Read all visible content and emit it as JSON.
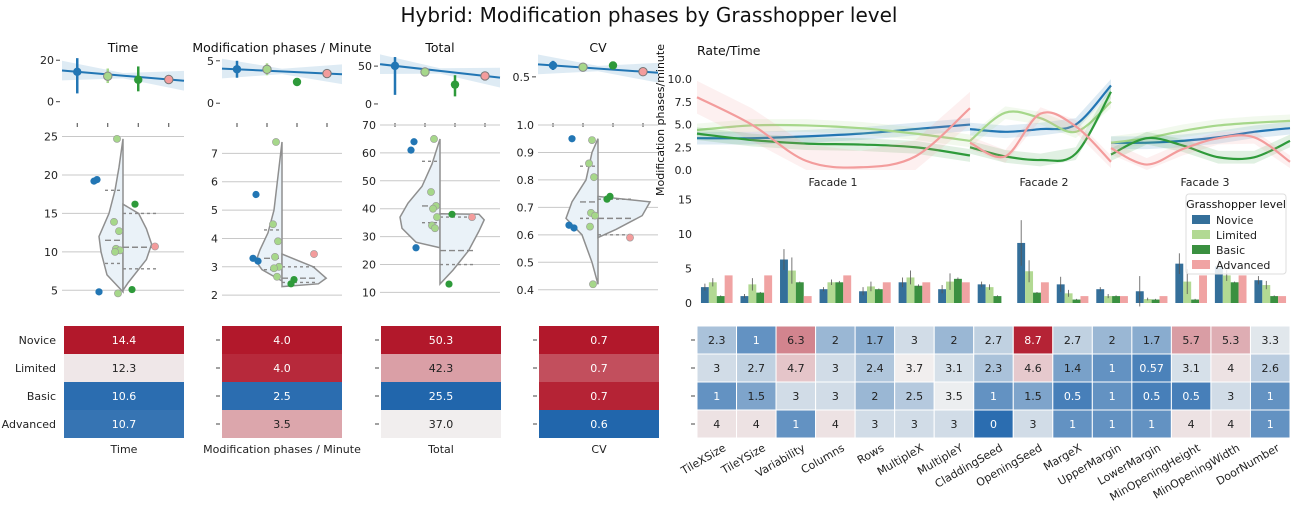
{
  "title": "Hybrid: Modification phases by Grasshopper level",
  "levels": [
    "Novice",
    "Limited",
    "Basic",
    "Advanced"
  ],
  "colors": {
    "Novice": "#2276b4",
    "Limited": "#a6d78a",
    "Basic": "#2e9a3a",
    "Advanced": "#f39c9c",
    "violin_fill": "#eaf2f8",
    "violin_edge": "#8f8f8f",
    "heat_high": "#b2182b",
    "heat_mid": "#f2f2f2",
    "heat_low": "#2166ac"
  },
  "chart_data": [
    {
      "type": "line",
      "id": "point-time",
      "title": "Time",
      "categories": [
        "Novice",
        "Limited",
        "Basic",
        "Advanced"
      ],
      "means": [
        14.4,
        12.3,
        10.6,
        10.7
      ],
      "ci": [
        [
          4,
          21
        ],
        [
          9,
          16
        ],
        [
          5,
          17
        ],
        [
          10,
          12
        ]
      ],
      "ylim": [
        -4,
        23
      ],
      "yticks": [
        "0",
        "20"
      ],
      "ytick_values": [
        0,
        20
      ]
    },
    {
      "type": "line",
      "id": "point-rate",
      "title": "Modification phases / Minute",
      "categories": [
        "Novice",
        "Limited",
        "Basic",
        "Advanced"
      ],
      "means": [
        4.0,
        4.0,
        2.5,
        3.5
      ],
      "ci": [
        [
          3.0,
          5.0
        ],
        [
          3.3,
          4.7
        ],
        [
          2.3,
          2.7
        ],
        [
          3.3,
          3.7
        ]
      ],
      "ylim": [
        -0.8,
        5.8
      ],
      "yticks": [
        "0",
        "5"
      ],
      "ytick_values": [
        0,
        5
      ]
    },
    {
      "type": "line",
      "id": "point-total",
      "title": "Total",
      "categories": [
        "Novice",
        "Limited",
        "Basic",
        "Advanced"
      ],
      "means": [
        50.3,
        42.3,
        25.5,
        37.0
      ],
      "ci": [
        [
          12,
          62
        ],
        [
          38,
          48
        ],
        [
          10,
          38
        ],
        [
          35,
          39
        ]
      ],
      "ylim": [
        -8,
        66
      ],
      "yticks": [
        "0",
        "50"
      ],
      "ytick_values": [
        0,
        50
      ]
    },
    {
      "type": "line",
      "id": "point-cv",
      "title": "CV",
      "categories": [
        "Novice",
        "Limited",
        "Basic",
        "Advanced"
      ],
      "means": [
        0.7,
        0.67,
        0.7,
        0.59
      ],
      "ci": [
        [
          0.62,
          0.78
        ],
        [
          0.6,
          0.74
        ],
        [
          0.68,
          0.72
        ],
        [
          0.57,
          0.61
        ]
      ],
      "ylim": [
        -0.08,
        0.9
      ],
      "yticks": [
        "0.5"
      ],
      "ytick_values": [
        0.5
      ]
    },
    {
      "type": "scatter",
      "id": "violin-time",
      "ylim": [
        4,
        26.5
      ],
      "yticks": [
        "5",
        "10",
        "15",
        "20",
        "25"
      ],
      "ytick_values": [
        5,
        10,
        15,
        20,
        25
      ],
      "points": [
        {
          "level": "Novice",
          "y": 19.4
        },
        {
          "level": "Novice",
          "y": 19.2
        },
        {
          "level": "Novice",
          "y": 4.8
        },
        {
          "level": "Limited",
          "y": 24.7
        },
        {
          "level": "Limited",
          "y": 13.9
        },
        {
          "level": "Limited",
          "y": 12.7
        },
        {
          "level": "Limited",
          "y": 10.4
        },
        {
          "level": "Limited",
          "y": 10.2
        },
        {
          "level": "Limited",
          "y": 10.0
        },
        {
          "level": "Limited",
          "y": 4.6
        },
        {
          "level": "Basic",
          "y": 16.2
        },
        {
          "level": "Basic",
          "y": 5.1
        },
        {
          "level": "Advanced",
          "y": 10.7
        }
      ]
    },
    {
      "type": "scatter",
      "id": "violin-rate",
      "ylim": [
        1.9,
        8.0
      ],
      "yticks": [
        "2",
        "3",
        "4",
        "5",
        "6",
        "7"
      ],
      "ytick_values": [
        2,
        3,
        4,
        5,
        6,
        7
      ],
      "points": [
        {
          "level": "Novice",
          "y": 5.55
        },
        {
          "level": "Novice",
          "y": 3.3
        },
        {
          "level": "Novice",
          "y": 3.2
        },
        {
          "level": "Limited",
          "y": 7.4
        },
        {
          "level": "Limited",
          "y": 4.5
        },
        {
          "level": "Limited",
          "y": 3.9
        },
        {
          "level": "Limited",
          "y": 3.35
        },
        {
          "level": "Limited",
          "y": 3.0
        },
        {
          "level": "Limited",
          "y": 2.95
        },
        {
          "level": "Limited",
          "y": 2.65
        },
        {
          "level": "Basic",
          "y": 2.55
        },
        {
          "level": "Basic",
          "y": 2.4
        },
        {
          "level": "Advanced",
          "y": 3.45
        }
      ]
    },
    {
      "type": "scatter",
      "id": "violin-total",
      "ylim": [
        8,
        70
      ],
      "yticks": [
        "10",
        "20",
        "30",
        "40",
        "50",
        "60",
        "70"
      ],
      "ytick_values": [
        10,
        20,
        30,
        40,
        50,
        60,
        70
      ],
      "points": [
        {
          "level": "Novice",
          "y": 64
        },
        {
          "level": "Novice",
          "y": 61
        },
        {
          "level": "Novice",
          "y": 26
        },
        {
          "level": "Limited",
          "y": 65
        },
        {
          "level": "Limited",
          "y": 46
        },
        {
          "level": "Limited",
          "y": 41
        },
        {
          "level": "Limited",
          "y": 40
        },
        {
          "level": "Limited",
          "y": 37
        },
        {
          "level": "Limited",
          "y": 34
        },
        {
          "level": "Limited",
          "y": 33
        },
        {
          "level": "Basic",
          "y": 38
        },
        {
          "level": "Basic",
          "y": 13
        },
        {
          "level": "Advanced",
          "y": 37
        }
      ]
    },
    {
      "type": "scatter",
      "id": "violin-cv",
      "ylim": [
        0.37,
        1.0
      ],
      "yticks": [
        "0.4",
        "0.5",
        "0.6",
        "0.7",
        "0.8",
        "0.9",
        "1.0"
      ],
      "ytick_values": [
        0.4,
        0.5,
        0.6,
        0.7,
        0.8,
        0.9,
        1.0
      ],
      "points": [
        {
          "level": "Novice",
          "y": 0.95
        },
        {
          "level": "Novice",
          "y": 0.635
        },
        {
          "level": "Novice",
          "y": 0.625
        },
        {
          "level": "Limited",
          "y": 0.945
        },
        {
          "level": "Limited",
          "y": 0.86
        },
        {
          "level": "Limited",
          "y": 0.81
        },
        {
          "level": "Limited",
          "y": 0.68
        },
        {
          "level": "Limited",
          "y": 0.67
        },
        {
          "level": "Limited",
          "y": 0.63
        },
        {
          "level": "Limited",
          "y": 0.42
        },
        {
          "level": "Basic",
          "y": 0.74
        },
        {
          "level": "Basic",
          "y": 0.73
        },
        {
          "level": "Advanced",
          "y": 0.59
        }
      ]
    },
    {
      "type": "heatmap",
      "id": "heat-summary",
      "rows": [
        "Novice",
        "Limited",
        "Basic",
        "Advanced"
      ],
      "columns": [
        {
          "label": "Time",
          "values": [
            "14.4",
            "12.3",
            "10.6",
            "10.7"
          ],
          "norm": [
            1.0,
            0.05,
            -0.95,
            -0.9
          ]
        },
        {
          "label": "Modification phases / Minute",
          "values": [
            "4.0",
            "4.0",
            "2.5",
            "3.5"
          ],
          "norm": [
            1.0,
            0.92,
            -0.95,
            0.35
          ]
        },
        {
          "label": "Total",
          "values": [
            "50.3",
            "42.3",
            "25.5",
            "37.0"
          ],
          "norm": [
            1.0,
            0.38,
            -1.0,
            0.02
          ]
        },
        {
          "label": "CV",
          "values": [
            "0.7",
            "0.7",
            "0.7",
            "0.6"
          ],
          "norm": [
            1.0,
            0.75,
            0.95,
            -1.0
          ]
        }
      ]
    },
    {
      "type": "line",
      "id": "rate-time",
      "title": "Rate/Time",
      "ylabel": "Modification phases/minute",
      "ylim": [
        0,
        11
      ],
      "yticks": [
        "0.0",
        "2.5",
        "5.0",
        "7.5",
        "10.0"
      ],
      "ytick_values": [
        0,
        2.5,
        5.0,
        7.5,
        10.0
      ],
      "segments": [
        "Facade 1",
        "Facade 2",
        "Facade 3"
      ],
      "series": [
        {
          "name": "Novice",
          "values": [
            [
              3.5,
              3.5,
              3.7,
              4.0,
              4.5,
              5.0
            ],
            [
              4.5,
              4.2,
              4.5,
              5.0,
              9.3
            ],
            [
              3.0,
              3.0,
              3.2,
              3.6,
              4.2,
              4.6
            ]
          ]
        },
        {
          "name": "Limited",
          "values": [
            [
              4.4,
              4.9,
              4.9,
              4.6,
              4.0,
              3.2
            ],
            [
              3.2,
              6.3,
              5.7,
              4.2,
              7.5
            ],
            [
              3.0,
              3.5,
              4.3,
              4.9,
              5.2,
              5.4
            ]
          ]
        },
        {
          "name": "Basic",
          "values": [
            [
              4.0,
              3.3,
              2.9,
              2.8,
              2.5,
              1.6
            ],
            [
              2.5,
              1.5,
              1.1,
              1.8,
              8.6
            ],
            [
              1.7,
              3.5,
              2.7,
              1.4,
              1.4,
              3.2
            ]
          ]
        },
        {
          "name": "Advanced",
          "values": [
            [
              8.0,
              5.0,
              1.0,
              0.3,
              1.5,
              6.8
            ],
            [
              3.0,
              1.5,
              6.2,
              4.8,
              0.9
            ],
            [
              2.4,
              0.6,
              2.3,
              3.5,
              3.6,
              0.9
            ]
          ]
        }
      ]
    },
    {
      "type": "bar",
      "id": "bar-params",
      "ylim": [
        0,
        15.5
      ],
      "yticks": [
        "0",
        "5",
        "10",
        "15"
      ],
      "ytick_values": [
        0,
        5,
        10,
        15
      ],
      "legend_title": "Grasshopper level",
      "legend": "top-right",
      "categories": [
        "TileXSize",
        "TileYSize",
        "Variability",
        "Columns",
        "Rows",
        "MultipleX",
        "MultipleY",
        "CladdingSeed",
        "OpeningSeed",
        "MargeX",
        "UpperMargin",
        "LowerMargin",
        "MinOpeningHeight",
        "MinOpeningWidth",
        "DoorNumber"
      ],
      "series": [
        {
          "name": "Novice",
          "values": [
            2.3,
            1,
            6.3,
            2,
            1.7,
            3,
            2,
            2.7,
            8.7,
            2.7,
            2,
            1.7,
            5.7,
            5.3,
            3.3
          ],
          "err": [
            0.5,
            0.3,
            1.5,
            0.3,
            0.6,
            0.7,
            0.6,
            0.4,
            3.3,
            1.1,
            0.3,
            2.2,
            1.5,
            1.0,
            0.6
          ]
        },
        {
          "name": "Limited",
          "values": [
            3,
            2.7,
            4.7,
            3,
            2.4,
            3.7,
            3.1,
            2.3,
            4.6,
            1.4,
            1,
            0.57,
            3.1,
            4,
            2.6
          ],
          "err": [
            0.6,
            0.9,
            1.9,
            0.4,
            0.7,
            1.0,
            1.2,
            0.4,
            1.6,
            0.5,
            0.3,
            0.2,
            1.8,
            0.8,
            0.6
          ]
        },
        {
          "name": "Basic",
          "values": [
            1,
            1.5,
            3,
            3,
            2,
            2.5,
            3.5,
            1,
            1.5,
            0.5,
            1,
            0.5,
            0.5,
            3,
            1
          ],
          "err": [
            0.1,
            0.1,
            0.1,
            0.2,
            0.1,
            0.2,
            0.2,
            0.1,
            0.1,
            0.1,
            0.1,
            0.1,
            0.1,
            0.1,
            0.1
          ]
        },
        {
          "name": "Advanced",
          "values": [
            4,
            4,
            1,
            4,
            3,
            3,
            3,
            0,
            3,
            1,
            1,
            1,
            4,
            4,
            1
          ],
          "err": [
            0,
            0,
            0,
            0,
            0,
            0,
            0,
            0,
            0,
            0,
            0,
            0,
            0,
            0,
            0
          ]
        }
      ]
    },
    {
      "type": "heatmap",
      "id": "heat-params",
      "rows": [
        "Novice",
        "Limited",
        "Basic",
        "Advanced"
      ],
      "cells": [
        [
          "2.3",
          "1",
          "6.3",
          "2",
          "1.7",
          "3",
          "2",
          "2.7",
          "8.7",
          "2.7",
          "2",
          "1.7",
          "5.7",
          "5.3",
          "3.3"
        ],
        [
          "3",
          "2.7",
          "4.7",
          "3",
          "2.4",
          "3.7",
          "3.1",
          "2.3",
          "4.6",
          "1.4",
          "1",
          "0.57",
          "3.1",
          "4",
          "2.6"
        ],
        [
          "1",
          "1.5",
          "3",
          "3",
          "2",
          "2.5",
          "3.5",
          "1",
          "1.5",
          "0.5",
          "1",
          "0.5",
          "0.5",
          "3",
          "1"
        ],
        [
          "4",
          "4",
          "1",
          "4",
          "3",
          "3",
          "3",
          "0",
          "3",
          "1",
          "1",
          "1",
          "4",
          "4",
          "1"
        ]
      ],
      "center": 3.6,
      "vmin": 0,
      "vmax": 8.7
    }
  ]
}
